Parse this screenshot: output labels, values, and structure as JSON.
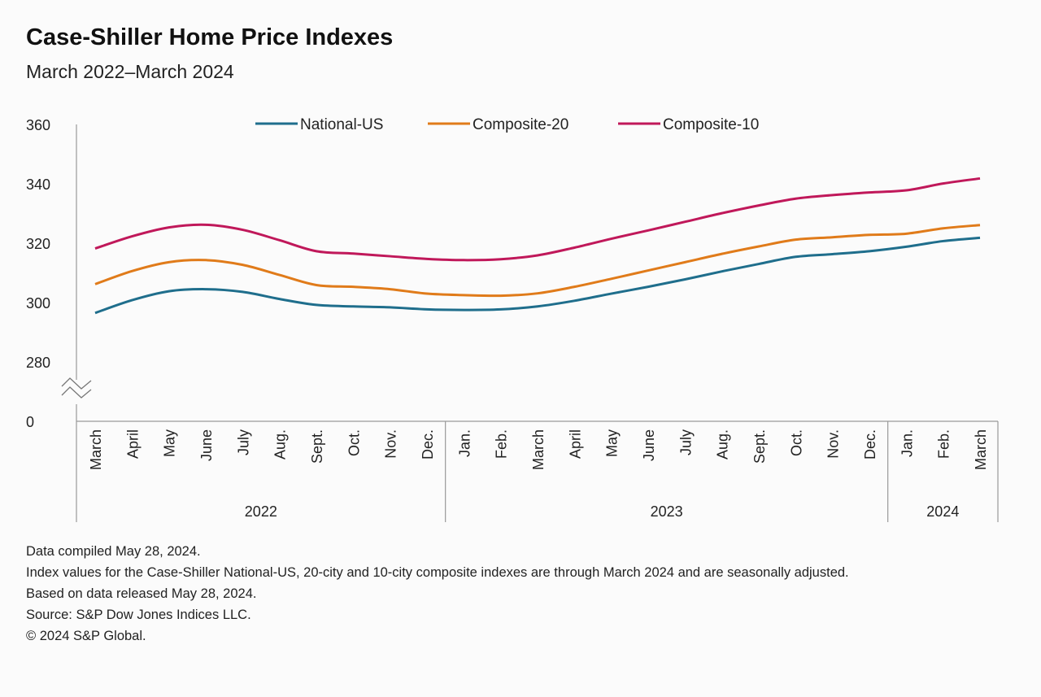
{
  "title": "Case-Shiller Home Price Indexes",
  "subtitle": "March 2022–March 2024",
  "chart_data": {
    "type": "line",
    "x": [
      "March",
      "April",
      "May",
      "June",
      "July",
      "Aug.",
      "Sept.",
      "Oct.",
      "Nov.",
      "Dec.",
      "Jan.",
      "Feb.",
      "March",
      "April",
      "May",
      "June",
      "July",
      "Aug.",
      "Sept.",
      "Oct.",
      "Nov.",
      "Dec.",
      "Jan.",
      "Feb.",
      "March"
    ],
    "years": [
      {
        "label": "2022",
        "start": 0,
        "end": 9
      },
      {
        "label": "2023",
        "start": 10,
        "end": 21
      },
      {
        "label": "2024",
        "start": 22,
        "end": 24
      }
    ],
    "series": [
      {
        "name": "National-US",
        "color": "#1f6e8c",
        "values": [
          296.5,
          300.8,
          303.8,
          304.5,
          303.6,
          301.2,
          299.2,
          298.7,
          298.4,
          297.7,
          297.5,
          297.7,
          298.7,
          300.6,
          303.0,
          305.3,
          307.8,
          310.5,
          313.0,
          315.4,
          316.3,
          317.3,
          318.8,
          320.7,
          321.8
        ]
      },
      {
        "name": "Composite-20",
        "color": "#e07b1a",
        "values": [
          306.2,
          310.6,
          313.6,
          314.3,
          312.7,
          309.3,
          305.9,
          305.3,
          304.5,
          303.0,
          302.5,
          302.3,
          303.1,
          305.3,
          308.0,
          310.8,
          313.6,
          316.4,
          318.9,
          321.2,
          322.0,
          322.8,
          323.2,
          325.0,
          326.1
        ]
      },
      {
        "name": "Composite-10",
        "color": "#c0185a",
        "values": [
          318.2,
          322.3,
          325.3,
          326.2,
          324.5,
          321.0,
          317.3,
          316.5,
          315.6,
          314.7,
          314.3,
          314.6,
          315.9,
          318.5,
          321.5,
          324.3,
          327.2,
          330.1,
          332.7,
          335.0,
          336.2,
          337.1,
          337.8,
          340.1,
          341.8
        ]
      }
    ],
    "yticks": [
      0,
      280,
      300,
      320,
      340,
      360
    ],
    "ylim_break": [
      0,
      270
    ],
    "ylim": [
      270,
      360
    ],
    "grid": false,
    "legend_position": "top-center"
  },
  "notes": [
    "Data compiled May 28, 2024.",
    "Index values for the Case-Shiller National-US, 20-city and 10-city composite indexes are through March 2024 and are seasonally adjusted.",
    "Based on data released May 28, 2024.",
    "Source: S&P Dow Jones Indices LLC.",
    "© 2024 S&P Global."
  ]
}
